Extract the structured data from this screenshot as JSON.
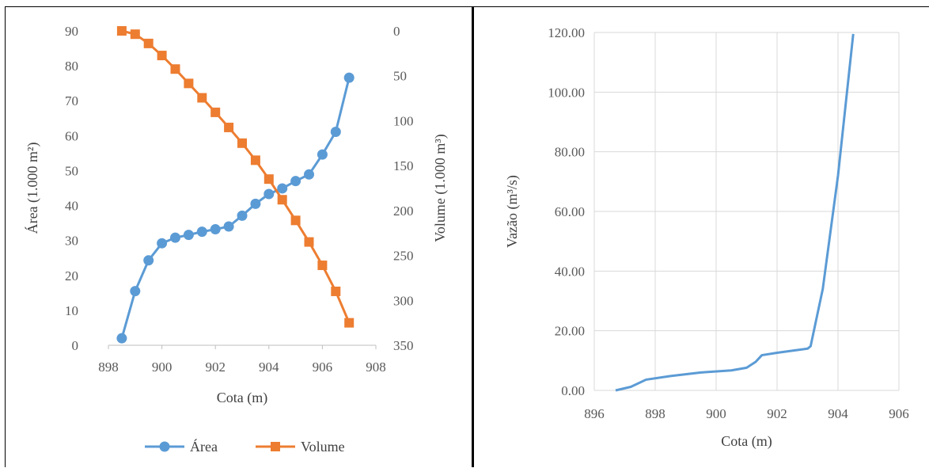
{
  "chart_data": [
    {
      "type": "line",
      "xlabel": "Cota (m)",
      "ylabel": "Área (1.000 m²)",
      "y2label": "Volume (1.000 m³)",
      "xlim": [
        898,
        908
      ],
      "ylim": [
        0,
        90
      ],
      "y2lim": [
        0,
        350
      ],
      "y2_inverted": true,
      "xticks": [
        "898",
        "900",
        "902",
        "904",
        "906",
        "908"
      ],
      "yticks": [
        "0",
        "10",
        "20",
        "30",
        "40",
        "50",
        "60",
        "70",
        "80",
        "90"
      ],
      "y2ticks": [
        "0",
        "50",
        "100",
        "150",
        "200",
        "250",
        "300",
        "350"
      ],
      "grid": false,
      "legend": "bottom",
      "series": [
        {
          "name": "Área",
          "axis": "left",
          "color": "#5B9BD5",
          "marker": "circle",
          "x": [
            898.5,
            899.0,
            899.5,
            900.0,
            900.5,
            901.0,
            901.5,
            902.0,
            902.5,
            903.0,
            903.5,
            904.0,
            904.5,
            905.0,
            905.5,
            906.0,
            906.5,
            907.0
          ],
          "y": [
            2.0,
            15.5,
            24.3,
            29.2,
            30.8,
            31.6,
            32.5,
            33.2,
            34.0,
            37.1,
            40.5,
            43.3,
            44.9,
            47.0,
            48.9,
            54.6,
            61.1,
            76.6
          ]
        },
        {
          "name": "Volume",
          "axis": "right",
          "color": "#ED7D31",
          "marker": "square",
          "x": [
            898.5,
            899.0,
            899.5,
            900.0,
            900.5,
            901.0,
            901.5,
            902.0,
            902.5,
            903.0,
            903.5,
            904.0,
            904.5,
            905.0,
            905.5,
            906.0,
            906.5,
            907.0
          ],
          "y": [
            0.0,
            3.7,
            14.0,
            27.4,
            42.5,
            58.5,
            74.5,
            90.7,
            107.5,
            125.0,
            144.0,
            165.0,
            188.0,
            211.0,
            235.0,
            261.0,
            290.0,
            325.0
          ]
        }
      ]
    },
    {
      "type": "line",
      "xlabel": "Cota (m)",
      "ylabel": "Vazão (m³/s)",
      "xlim": [
        896,
        906
      ],
      "ylim": [
        0,
        120
      ],
      "xticks": [
        "896",
        "898",
        "900",
        "902",
        "904",
        "906"
      ],
      "yticks": [
        "0.00",
        "20.00",
        "40.00",
        "60.00",
        "80.00",
        "100.00",
        "120.00"
      ],
      "grid": true,
      "series": [
        {
          "color": "#5B9BD5",
          "x": [
            896.7,
            897.2,
            897.7,
            898.5,
            899.5,
            900.5,
            901.0,
            901.3,
            901.5,
            902.0,
            902.5,
            903.0,
            903.1,
            903.5,
            904.0,
            904.5
          ],
          "y": [
            0.0,
            1.2,
            3.6,
            4.8,
            6.0,
            6.7,
            7.6,
            9.6,
            11.8,
            12.6,
            13.3,
            14.0,
            14.8,
            34.0,
            72.0,
            119.5
          ]
        }
      ]
    }
  ]
}
